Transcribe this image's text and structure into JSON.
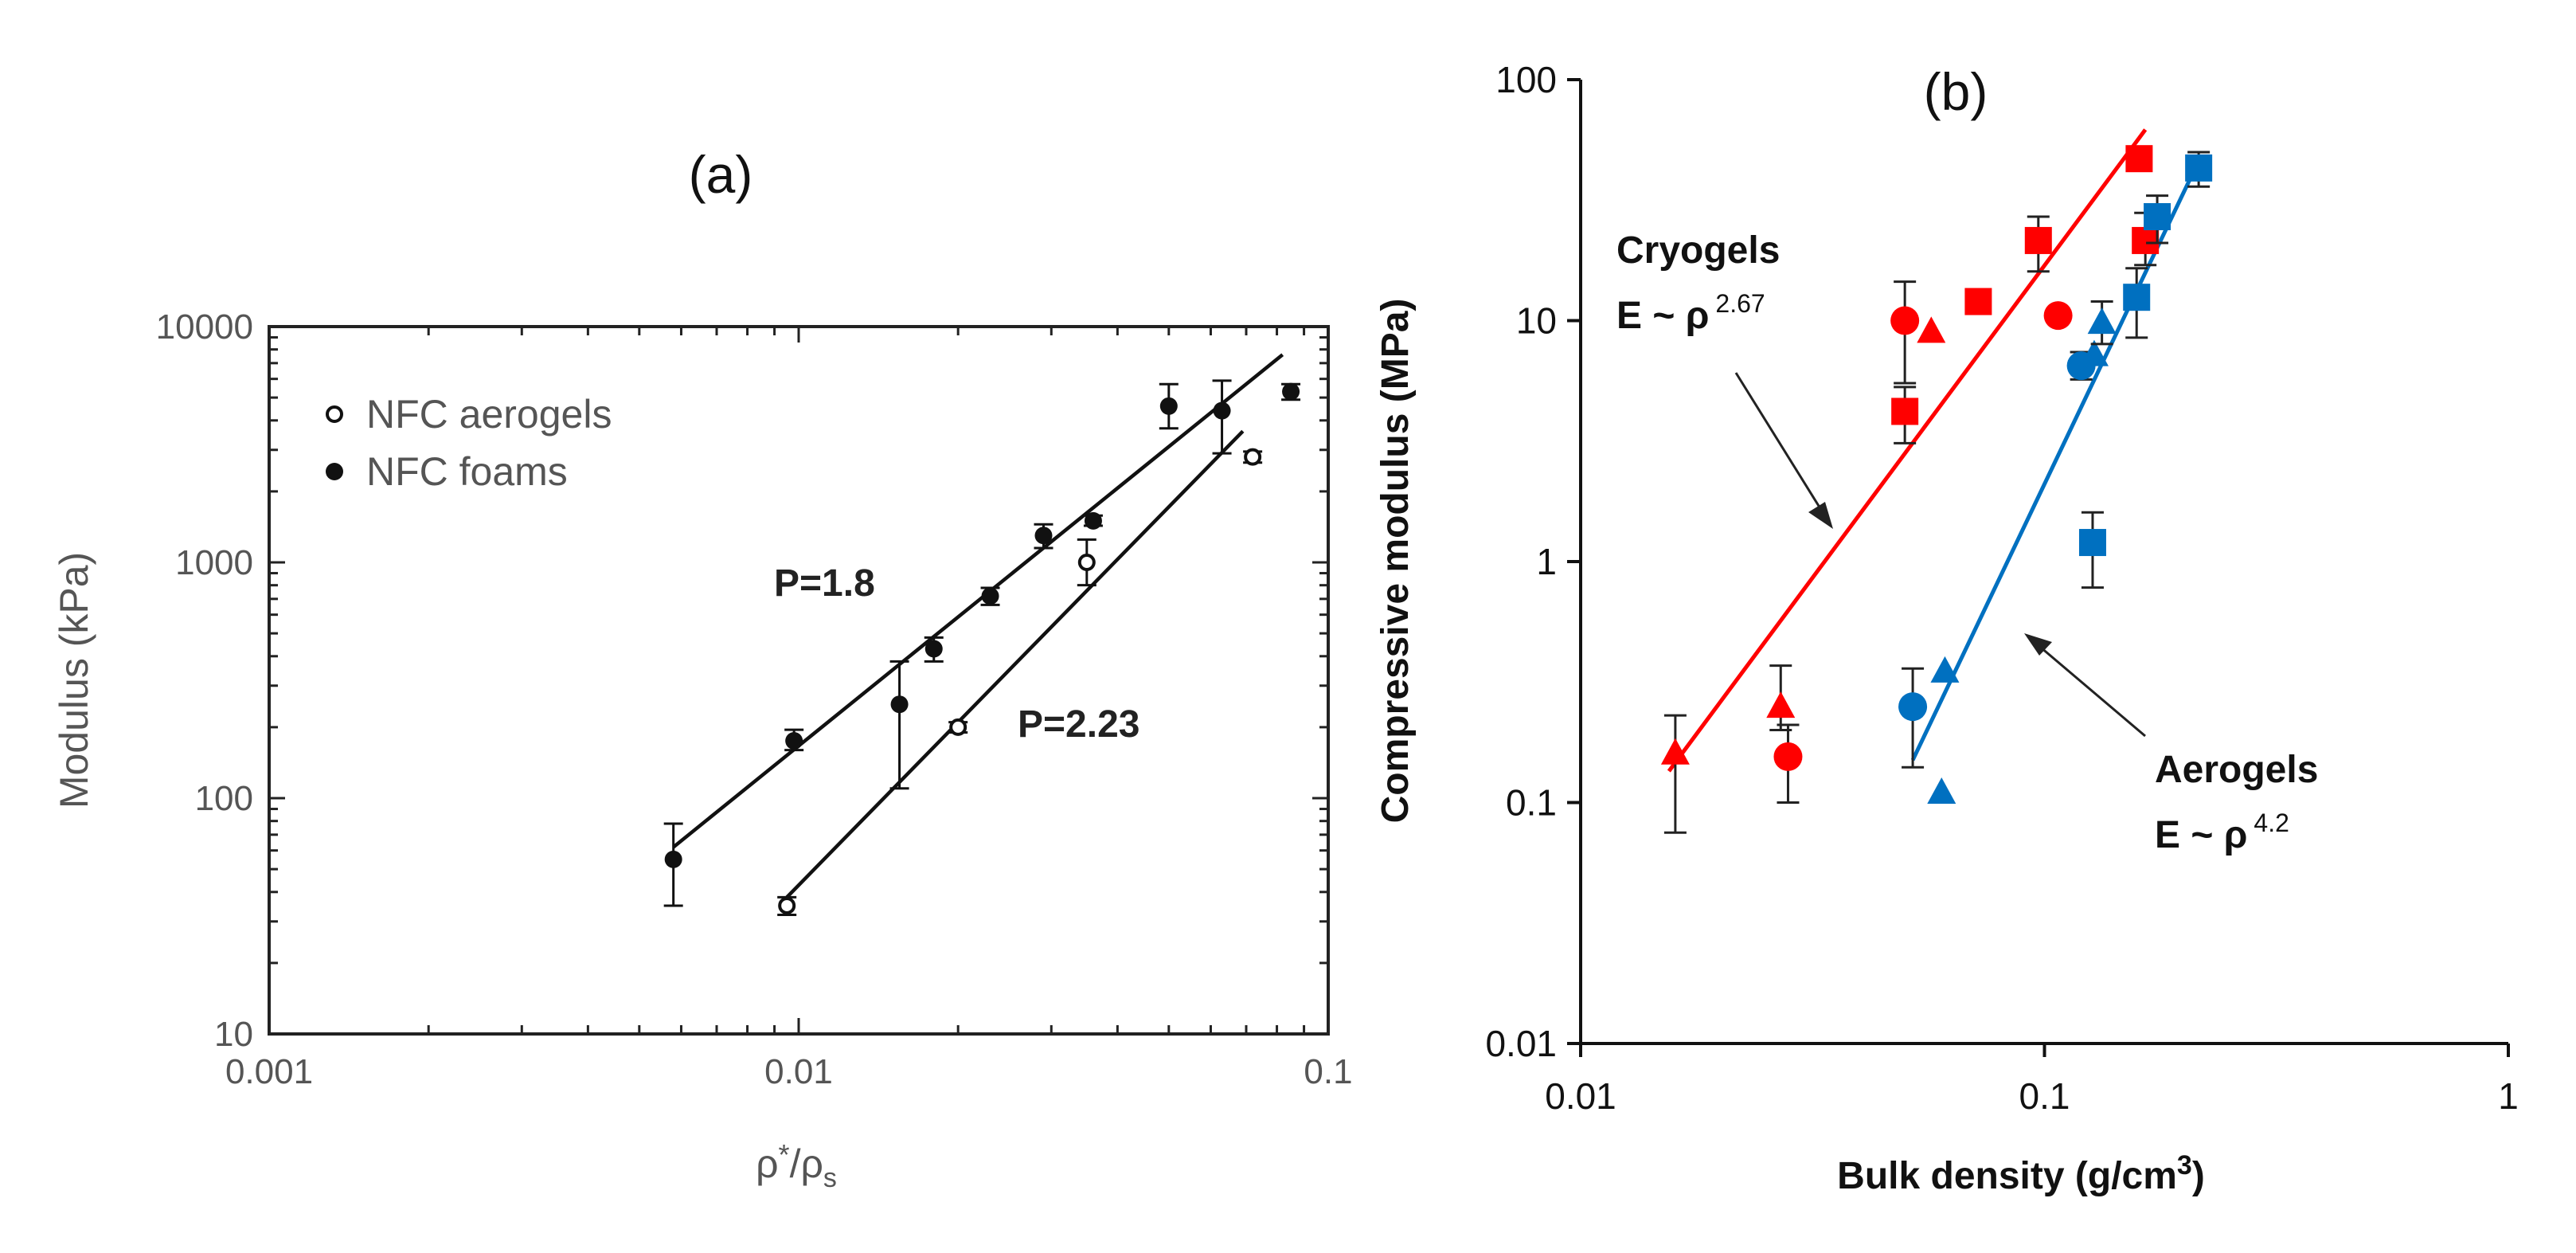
{
  "chart_data": [
    {
      "type": "scatter",
      "panel_label": "(a)",
      "xscale": "log",
      "yscale": "log",
      "xlim": [
        0.001,
        0.1
      ],
      "ylim": [
        10,
        10000
      ],
      "xlabel": "ρ*/ρs",
      "xlabel_main": "ρ",
      "xlabel_sup": "*",
      "xlabel_mid": "/ρ",
      "xlabel_sub": "s",
      "ylabel": "Modulus (kPa)",
      "x_ticks": [
        "0.001",
        "0.01",
        "0.1"
      ],
      "y_ticks": [
        "10",
        "100",
        "1000",
        "10000"
      ],
      "legend": [
        {
          "label": "NFC aerogels",
          "marker": "open-circle"
        },
        {
          "label": "NFC foams",
          "marker": "filled-circle"
        }
      ],
      "annotations": [
        "P=1.8",
        "P=2.23"
      ],
      "series": [
        {
          "name": "NFC foams",
          "marker": "filled-circle",
          "points": [
            {
              "x": 0.0058,
              "y": 55,
              "lo": 35,
              "hi": 78
            },
            {
              "x": 0.0098,
              "y": 175,
              "lo": 160,
              "hi": 195
            },
            {
              "x": 0.0155,
              "y": 250,
              "lo": 110,
              "hi": 380
            },
            {
              "x": 0.018,
              "y": 430,
              "lo": 380,
              "hi": 480
            },
            {
              "x": 0.023,
              "y": 720,
              "lo": 660,
              "hi": 780
            },
            {
              "x": 0.029,
              "y": 1300,
              "lo": 1150,
              "hi": 1450
            },
            {
              "x": 0.036,
              "y": 1500,
              "lo": 1430,
              "hi": 1580
            },
            {
              "x": 0.05,
              "y": 4600,
              "lo": 3700,
              "hi": 5700
            },
            {
              "x": 0.063,
              "y": 4400,
              "lo": 2900,
              "hi": 5900
            },
            {
              "x": 0.085,
              "y": 5300,
              "lo": 4900,
              "hi": 5700
            }
          ]
        },
        {
          "name": "NFC aerogels",
          "marker": "open-circle",
          "points": [
            {
              "x": 0.0095,
              "y": 35,
              "lo": 32,
              "hi": 38
            },
            {
              "x": 0.02,
              "y": 200,
              "lo": 190,
              "hi": 210
            },
            {
              "x": 0.035,
              "y": 1000,
              "lo": 800,
              "hi": 1250
            },
            {
              "x": 0.072,
              "y": 2800,
              "lo": 2650,
              "hi": 2950
            }
          ]
        }
      ],
      "fit_lines": [
        {
          "name": "P=1.8",
          "x": [
            0.0058,
            0.082
          ],
          "y": [
            62,
            7600
          ]
        },
        {
          "name": "P=2.23",
          "x": [
            0.0095,
            0.069
          ],
          "y": [
            38,
            3600
          ]
        }
      ]
    },
    {
      "type": "scatter",
      "panel_label": "(b)",
      "xscale": "log",
      "yscale": "log",
      "xlim": [
        0.01,
        1
      ],
      "ylim": [
        0.01,
        100
      ],
      "xlabel": "Bulk density (g/cm3)",
      "xlabel_main": "Bulk density (g/cm",
      "xlabel_sup": "3",
      "xlabel_end": ")",
      "ylabel": "Compressive modulus (MPa)",
      "x_ticks": [
        "0.01",
        "0.1",
        "1"
      ],
      "y_ticks": [
        "0.01",
        "0.1",
        "1",
        "10",
        "100"
      ],
      "colors": {
        "cryogels": "#ff0000",
        "aerogels": "#0070c0",
        "errorbar": "#222222",
        "arrow": "#222222"
      },
      "annotations": {
        "cryogels_title": "Cryogels",
        "cryogels_eq": "E ~ ρ",
        "cryogels_exp": "2.67",
        "aerogels_title": "Aerogels",
        "aerogels_eq": "E ~ ρ",
        "aerogels_exp": "4.2"
      },
      "series": [
        {
          "name": "Cryogels",
          "color": "#ff0000",
          "points": [
            {
              "x": 0.016,
              "y": 0.16,
              "marker": "triangle",
              "lo": 0.075,
              "hi": 0.23
            },
            {
              "x": 0.027,
              "y": 0.25,
              "marker": "triangle",
              "lo": 0.2,
              "hi": 0.37
            },
            {
              "x": 0.028,
              "y": 0.155,
              "marker": "circle",
              "lo": 0.1,
              "hi": 0.21
            },
            {
              "x": 0.05,
              "y": 10,
              "marker": "circle",
              "lo": 5.5,
              "hi": 14.5
            },
            {
              "x": 0.05,
              "y": 4.2,
              "marker": "square",
              "lo": 3.1,
              "hi": 5.3
            },
            {
              "x": 0.057,
              "y": 9,
              "marker": "triangle"
            },
            {
              "x": 0.072,
              "y": 12,
              "marker": "square"
            },
            {
              "x": 0.097,
              "y": 21.5,
              "marker": "square",
              "lo": 16,
              "hi": 27
            },
            {
              "x": 0.107,
              "y": 10.5,
              "marker": "circle"
            },
            {
              "x": 0.16,
              "y": 47,
              "marker": "square"
            },
            {
              "x": 0.165,
              "y": 21.5,
              "marker": "square",
              "lo": 17,
              "hi": 28
            }
          ]
        },
        {
          "name": "Aerogels",
          "color": "#0070c0",
          "points": [
            {
              "x": 0.052,
              "y": 0.25,
              "marker": "circle",
              "lo": 0.14,
              "hi": 0.36
            },
            {
              "x": 0.06,
              "y": 0.11,
              "marker": "triangle"
            },
            {
              "x": 0.061,
              "y": 0.35,
              "marker": "triangle"
            },
            {
              "x": 0.12,
              "y": 6.5,
              "marker": "circle",
              "lo": 5.7,
              "hi": 7.4
            },
            {
              "x": 0.127,
              "y": 1.2,
              "marker": "square",
              "lo": 0.78,
              "hi": 1.6
            },
            {
              "x": 0.128,
              "y": 7.2,
              "marker": "triangle"
            },
            {
              "x": 0.133,
              "y": 9.8,
              "marker": "triangle",
              "lo": 8,
              "hi": 12
            },
            {
              "x": 0.158,
              "y": 12.5,
              "marker": "square",
              "lo": 8.5,
              "hi": 16.5
            },
            {
              "x": 0.175,
              "y": 27,
              "marker": "square",
              "lo": 21,
              "hi": 33
            },
            {
              "x": 0.215,
              "y": 43,
              "marker": "square",
              "lo": 36,
              "hi": 50
            }
          ]
        }
      ],
      "fit_lines": [
        {
          "name": "Cryogels fit",
          "color": "#ff0000",
          "x": [
            0.0155,
            0.165
          ],
          "y": [
            0.135,
            62
          ]
        },
        {
          "name": "Aerogels fit",
          "color": "#0070c0",
          "x": [
            0.052,
            0.215
          ],
          "y": [
            0.15,
            46
          ]
        }
      ]
    }
  ]
}
